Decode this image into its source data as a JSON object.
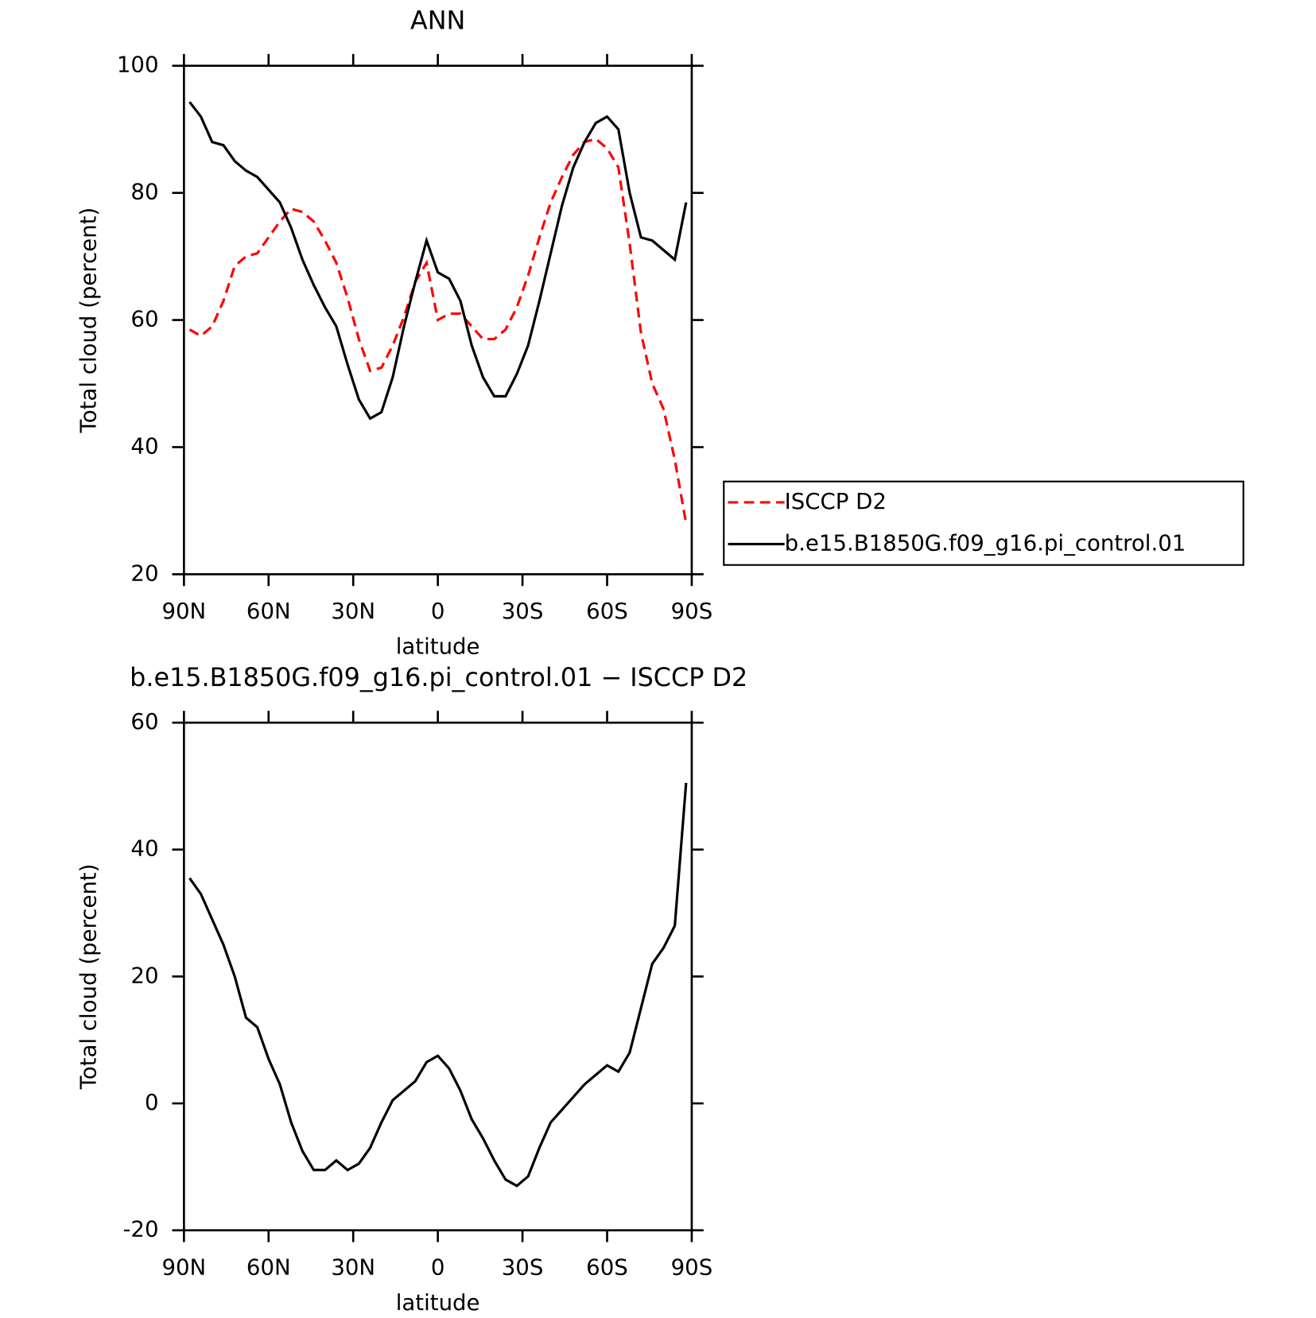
{
  "chart_data": [
    {
      "type": "line",
      "title": "ANN",
      "xlabel": "latitude",
      "ylabel": "Total cloud (percent)",
      "x": [
        88,
        84,
        80,
        76,
        72,
        68,
        64,
        60,
        56,
        52,
        48,
        44,
        40,
        36,
        32,
        28,
        24,
        20,
        16,
        12,
        8,
        4,
        0,
        -4,
        -8,
        -12,
        -16,
        -20,
        -24,
        -28,
        -32,
        -36,
        -40,
        -44,
        -48,
        -52,
        -56,
        -60,
        -64,
        -68,
        -72,
        -76,
        -80,
        -84,
        -88
      ],
      "series": [
        {
          "name": "ISCCP D2",
          "color": "#ff0000",
          "dashed": true,
          "values": [
            58.5,
            57.5,
            59,
            63,
            68.5,
            70,
            70.5,
            73,
            75.5,
            77.5,
            77,
            75.5,
            72.5,
            69,
            63.5,
            57,
            52,
            52.5,
            56,
            60.5,
            66,
            69,
            60,
            61,
            61,
            59,
            57,
            57,
            58.5,
            62,
            67,
            73,
            78.5,
            82.5,
            86,
            88,
            88.5,
            87,
            84,
            72,
            58,
            50,
            46,
            38,
            28
          ]
        },
        {
          "name": "b.e15.B1850G.f09_g16.pi_control.01",
          "color": "#000000",
          "dashed": false,
          "values": [
            94.3,
            92,
            88,
            87.5,
            85,
            83.5,
            82.5,
            80.5,
            78.5,
            74.5,
            69.5,
            65.5,
            62,
            59,
            53,
            47.5,
            44.5,
            45.5,
            51,
            59,
            66,
            72.5,
            67.5,
            66.5,
            63,
            56,
            51,
            48,
            48,
            51.5,
            56,
            63,
            70.5,
            78,
            84,
            88,
            91,
            92,
            90,
            80,
            73,
            72.5,
            71,
            69.5,
            78.5
          ]
        }
      ],
      "xlim": [
        90,
        -90
      ],
      "xticks": [
        {
          "value": 90,
          "label": "90N"
        },
        {
          "value": 60,
          "label": "60N"
        },
        {
          "value": 30,
          "label": "30N"
        },
        0,
        {
          "value": -30,
          "label": "30S"
        },
        {
          "value": -60,
          "label": "60S"
        },
        {
          "value": -90,
          "label": "90S"
        }
      ],
      "ylim": [
        20,
        100
      ],
      "yticks": [
        20,
        40,
        60,
        80,
        100
      ],
      "legend": "right"
    },
    {
      "type": "line",
      "title": "b.e15.B1850G.f09_g16.pi_control.01 − ISCCP D2",
      "xlabel": "latitude",
      "ylabel": "Total cloud (percent)",
      "x": [
        88,
        84,
        80,
        76,
        72,
        68,
        64,
        60,
        56,
        52,
        48,
        44,
        40,
        36,
        32,
        28,
        24,
        20,
        16,
        12,
        8,
        4,
        0,
        -4,
        -8,
        -12,
        -16,
        -20,
        -24,
        -28,
        -32,
        -36,
        -40,
        -44,
        -48,
        -52,
        -56,
        -60,
        -64,
        -68,
        -72,
        -76,
        -80,
        -84,
        -88
      ],
      "series": [
        {
          "color": "#000000",
          "dashed": false,
          "values": [
            35.5,
            33,
            29,
            25,
            20,
            13.5,
            12,
            7,
            3,
            -3,
            -7.5,
            -10.5,
            -10.5,
            -9,
            -10.5,
            -9.5,
            -7,
            -3,
            0.5,
            2,
            3.5,
            6.5,
            7.5,
            5.5,
            2,
            -2.5,
            -5.5,
            -9,
            -12,
            -13,
            -11.5,
            -7,
            -3,
            -1,
            1,
            3,
            4.5,
            6,
            5,
            8,
            15,
            22,
            24.5,
            28,
            50.5
          ]
        }
      ],
      "xlim": [
        90,
        -90
      ],
      "xticks": [
        {
          "value": 90,
          "label": "90N"
        },
        {
          "value": 60,
          "label": "60N"
        },
        {
          "value": 30,
          "label": "30N"
        },
        0,
        {
          "value": -30,
          "label": "30S"
        },
        {
          "value": -60,
          "label": "60S"
        },
        {
          "value": -90,
          "label": "90S"
        }
      ],
      "ylim": [
        -20,
        60
      ],
      "yticks": [
        -20,
        0,
        20,
        40,
        60
      ]
    }
  ]
}
